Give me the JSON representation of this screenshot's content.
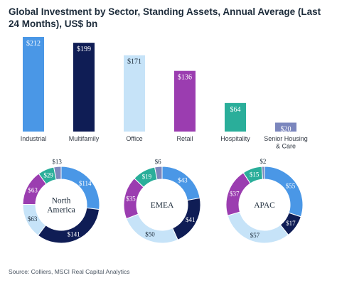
{
  "title": "Global Investment by Sector, Standing Assets, Annual Average (Last 24 Months), US$ bn",
  "source": "Source: Colliers, MSCI Real Capital Analytics",
  "colors": {
    "industrial": "#4a97e6",
    "multifamily": "#0f1d55",
    "office": "#c6e3f8",
    "retail": "#9b3db0",
    "hospitality": "#2aae9a",
    "senior": "#7b86bd"
  },
  "chart_data": [
    {
      "type": "bar",
      "categories": [
        "Industrial",
        "Multifamily",
        "Office",
        "Retail",
        "Hospitality",
        "Senior Housing & Care"
      ],
      "category_lines": [
        [
          "Industrial"
        ],
        [
          "Multifamily"
        ],
        [
          "Office"
        ],
        [
          "Retail"
        ],
        [
          "Hospitality"
        ],
        [
          "Senior Housing",
          "& Care"
        ]
      ],
      "values": [
        212,
        199,
        171,
        136,
        64,
        20
      ],
      "data_labels": [
        "$212",
        "$199",
        "$171",
        "$136",
        "$64",
        "$20"
      ],
      "colors": [
        "#4a97e6",
        "#0f1d55",
        "#c6e3f8",
        "#9b3db0",
        "#2aae9a",
        "#7b86bd"
      ],
      "grid": false
    },
    {
      "type": "pie",
      "center_label": [
        "North",
        "America"
      ],
      "slices": [
        {
          "category": "Industrial",
          "value": 114,
          "label": "$114"
        },
        {
          "category": "Multifamily",
          "value": 141,
          "label": "$141"
        },
        {
          "category": "Office",
          "value": 63,
          "label": "$63"
        },
        {
          "category": "Retail",
          "value": 63,
          "label": "$63"
        },
        {
          "category": "Hospitality",
          "value": 29,
          "label": "$29"
        },
        {
          "category": "Senior Housing & Care",
          "value": 13,
          "label": "$13"
        }
      ]
    },
    {
      "type": "pie",
      "center_label": [
        "EMEA"
      ],
      "slices": [
        {
          "category": "Industrial",
          "value": 43,
          "label": "$43"
        },
        {
          "category": "Multifamily",
          "value": 41,
          "label": "$41"
        },
        {
          "category": "Office",
          "value": 50,
          "label": "$50"
        },
        {
          "category": "Retail",
          "value": 35,
          "label": "$35"
        },
        {
          "category": "Hospitality",
          "value": 19,
          "label": "$19"
        },
        {
          "category": "Senior Housing & Care",
          "value": 6,
          "label": "$6"
        }
      ]
    },
    {
      "type": "pie",
      "center_label": [
        "APAC"
      ],
      "slices": [
        {
          "category": "Industrial",
          "value": 55,
          "label": "$55"
        },
        {
          "category": "Multifamily",
          "value": 17,
          "label": "$17"
        },
        {
          "category": "Office",
          "value": 57,
          "label": "$57"
        },
        {
          "category": "Retail",
          "value": 37,
          "label": "$37"
        },
        {
          "category": "Hospitality",
          "value": 15,
          "label": "$15"
        },
        {
          "category": "Senior Housing & Care",
          "value": 2,
          "label": "$2"
        }
      ]
    }
  ]
}
